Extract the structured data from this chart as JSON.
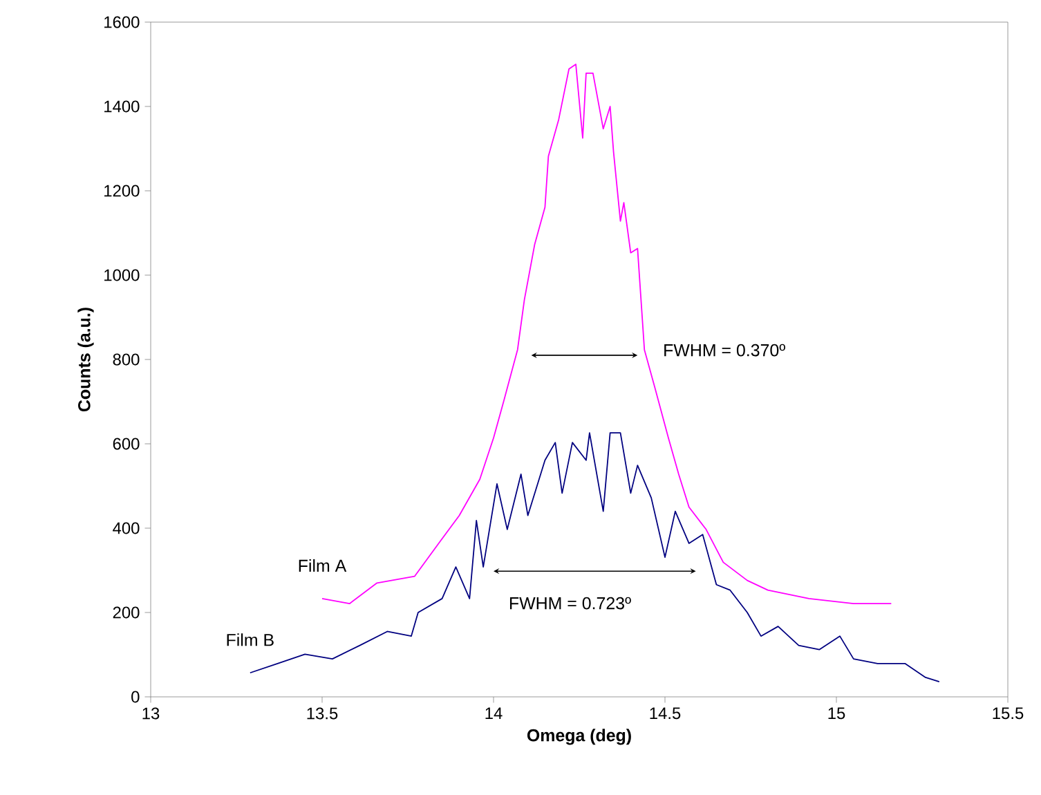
{
  "chart_data": {
    "type": "line",
    "xlabel": "Omega (deg)",
    "ylabel": "Counts (a.u.)",
    "xlim": [
      13,
      15.5
    ],
    "xticks": [
      13,
      13.5,
      14,
      14.5,
      15,
      15.5
    ],
    "ylim": [
      0,
      1600
    ],
    "yticks": [
      0,
      200,
      400,
      600,
      800,
      1000,
      1200,
      1400,
      1600
    ],
    "grid": false,
    "series": [
      {
        "name": "Film A",
        "color": "#ff00ff",
        "x": [
          13.5,
          13.58,
          13.66,
          13.77,
          13.84,
          13.9,
          13.96,
          14.0,
          14.03,
          14.07,
          14.09,
          14.12,
          14.15,
          14.16,
          14.19,
          14.22,
          14.24,
          14.26,
          14.27,
          14.29,
          14.32,
          14.34,
          14.35,
          14.37,
          14.38,
          14.4,
          14.42,
          14.44,
          14.47,
          14.51,
          14.54,
          14.57,
          14.62,
          14.67,
          14.74,
          14.8,
          14.92,
          15.05,
          15.16
        ],
        "values": [
          233,
          221,
          270,
          286,
          364,
          430,
          516,
          614,
          702,
          823,
          942,
          1073,
          1161,
          1282,
          1369,
          1489,
          1500,
          1325,
          1479,
          1479,
          1347,
          1400,
          1292,
          1128,
          1172,
          1053,
          1063,
          823,
          735,
          614,
          528,
          450,
          397,
          319,
          276,
          253,
          233,
          221,
          221
        ]
      },
      {
        "name": "Film B",
        "color": "#000080",
        "x": [
          13.29,
          13.37,
          13.45,
          13.53,
          13.61,
          13.69,
          13.76,
          13.78,
          13.85,
          13.89,
          13.93,
          13.95,
          13.97,
          14.01,
          14.04,
          14.08,
          14.1,
          14.15,
          14.18,
          14.2,
          14.23,
          14.27,
          14.28,
          14.32,
          14.34,
          14.37,
          14.4,
          14.42,
          14.46,
          14.5,
          14.53,
          14.57,
          14.61,
          14.65,
          14.69,
          14.74,
          14.78,
          14.83,
          14.89,
          14.95,
          15.01,
          15.05,
          15.12,
          15.2,
          15.26,
          15.3
        ],
        "values": [
          57,
          79,
          101,
          90,
          122,
          155,
          144,
          200,
          233,
          308,
          233,
          418,
          308,
          505,
          397,
          528,
          430,
          561,
          603,
          483,
          603,
          561,
          626,
          440,
          626,
          626,
          483,
          549,
          472,
          331,
          440,
          364,
          385,
          266,
          253,
          200,
          144,
          167,
          122,
          112,
          144,
          90,
          79,
          79,
          46,
          36
        ]
      }
    ],
    "annotations": [
      "FWHM = 0.370º",
      "FWHM = 0.723º"
    ]
  }
}
